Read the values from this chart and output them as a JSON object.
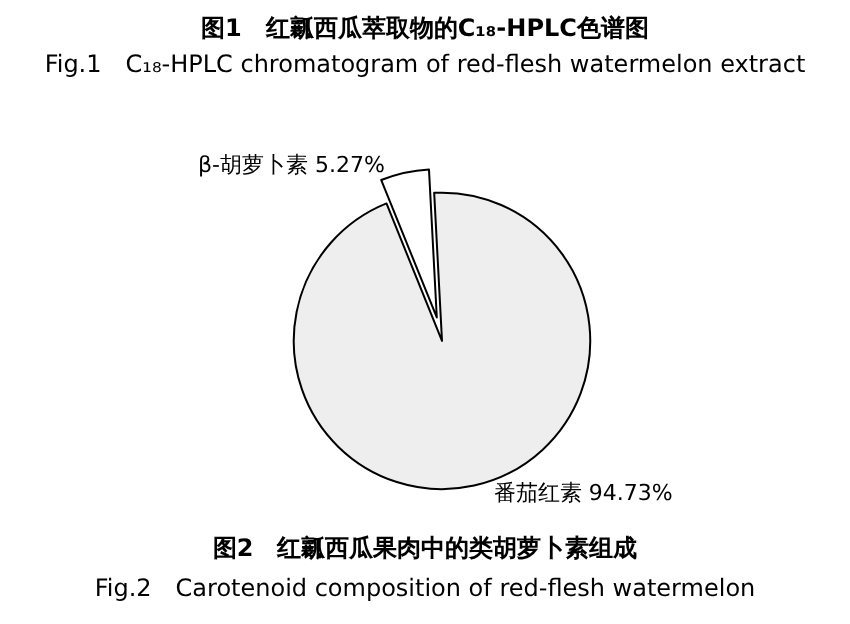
{
  "chart_data": {
    "type": "pie",
    "title": "图2　红瓤西瓜果肉中的类胡萝卜素组成",
    "subtitle": "Fig.2　Carotenoid composition of red-flesh watermelon",
    "annotations": [
      "图1　红瓤西瓜萃取物的C₁₈-HPLC色谱图",
      "Fig.1　C₁₈-HPLC chromatogram of red-flesh watermelon extract"
    ],
    "categories": [
      "β-胡萝卜素",
      "番茄红素"
    ],
    "values": [
      5.27,
      94.73
    ],
    "value_labels": [
      "5.27%",
      "94.73%"
    ],
    "colors": [
      "#ffffff",
      "#eeeeee"
    ]
  }
}
